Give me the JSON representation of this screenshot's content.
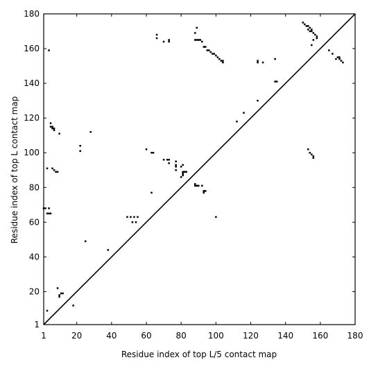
{
  "chart_data": {
    "type": "contact-map",
    "xlabel": "Residue index of top L/5 contact map",
    "ylabel": "Residue index of top L contact map",
    "xlim": [
      1,
      180
    ],
    "ylim": [
      1,
      180
    ],
    "xticks": [
      1,
      20,
      40,
      60,
      80,
      100,
      120,
      140,
      160,
      180
    ],
    "yticks": [
      1,
      20,
      40,
      60,
      80,
      100,
      120,
      140,
      160,
      180
    ],
    "color": "#000000",
    "x": [
      4,
      66,
      66,
      70,
      73,
      73,
      89,
      88,
      88,
      89,
      90,
      91,
      92,
      93,
      94,
      95,
      96,
      97,
      98,
      99,
      100,
      101,
      102,
      103,
      104,
      104,
      124,
      124,
      127,
      134,
      134,
      135,
      116,
      112,
      124,
      150,
      151,
      152,
      153,
      154,
      155,
      155,
      156,
      157,
      158,
      158,
      156,
      155,
      154,
      153,
      165,
      167,
      169,
      170,
      171,
      171,
      172,
      173,
      153,
      154,
      155,
      156,
      156,
      5,
      5,
      6,
      7,
      7,
      6,
      10,
      28,
      22,
      22,
      3,
      6,
      7,
      8,
      9,
      1,
      2,
      4,
      3,
      4,
      5,
      49,
      51,
      53,
      55,
      52,
      54,
      25,
      38,
      60,
      63,
      64,
      63,
      70,
      73,
      73,
      72,
      77,
      77,
      77,
      77,
      81,
      80,
      81,
      82,
      83,
      81,
      81,
      80,
      88,
      89,
      90,
      88,
      92,
      93,
      94,
      93,
      100,
      9,
      11,
      12,
      10,
      10,
      18,
      3
    ],
    "y": [
      159,
      166,
      168,
      164,
      164,
      165,
      172,
      169,
      165,
      165,
      165,
      165,
      164,
      161,
      161,
      159,
      159,
      158,
      157,
      157,
      156,
      155,
      154,
      153,
      152,
      153,
      152,
      153,
      152,
      154,
      141,
      141,
      123,
      118,
      130,
      175,
      174,
      173,
      173,
      172,
      171,
      170,
      169,
      168,
      167,
      166,
      165,
      162,
      170,
      171,
      159,
      157,
      154,
      155,
      155,
      154,
      153,
      152,
      102,
      100,
      99,
      98,
      97,
      117,
      115,
      114,
      114,
      113,
      115,
      111,
      112,
      104,
      101,
      91,
      91,
      90,
      89,
      89,
      68,
      68,
      68,
      65,
      65,
      65,
      63,
      63,
      63,
      63,
      60,
      60,
      49,
      44,
      102,
      100,
      100,
      77,
      96,
      96,
      94,
      96,
      95,
      93,
      92,
      90,
      93,
      92,
      89,
      89,
      89,
      88,
      87,
      86,
      81,
      81,
      81,
      82,
      81,
      78,
      78,
      77,
      63,
      22,
      19,
      19,
      18,
      17,
      12,
      9
    ]
  }
}
